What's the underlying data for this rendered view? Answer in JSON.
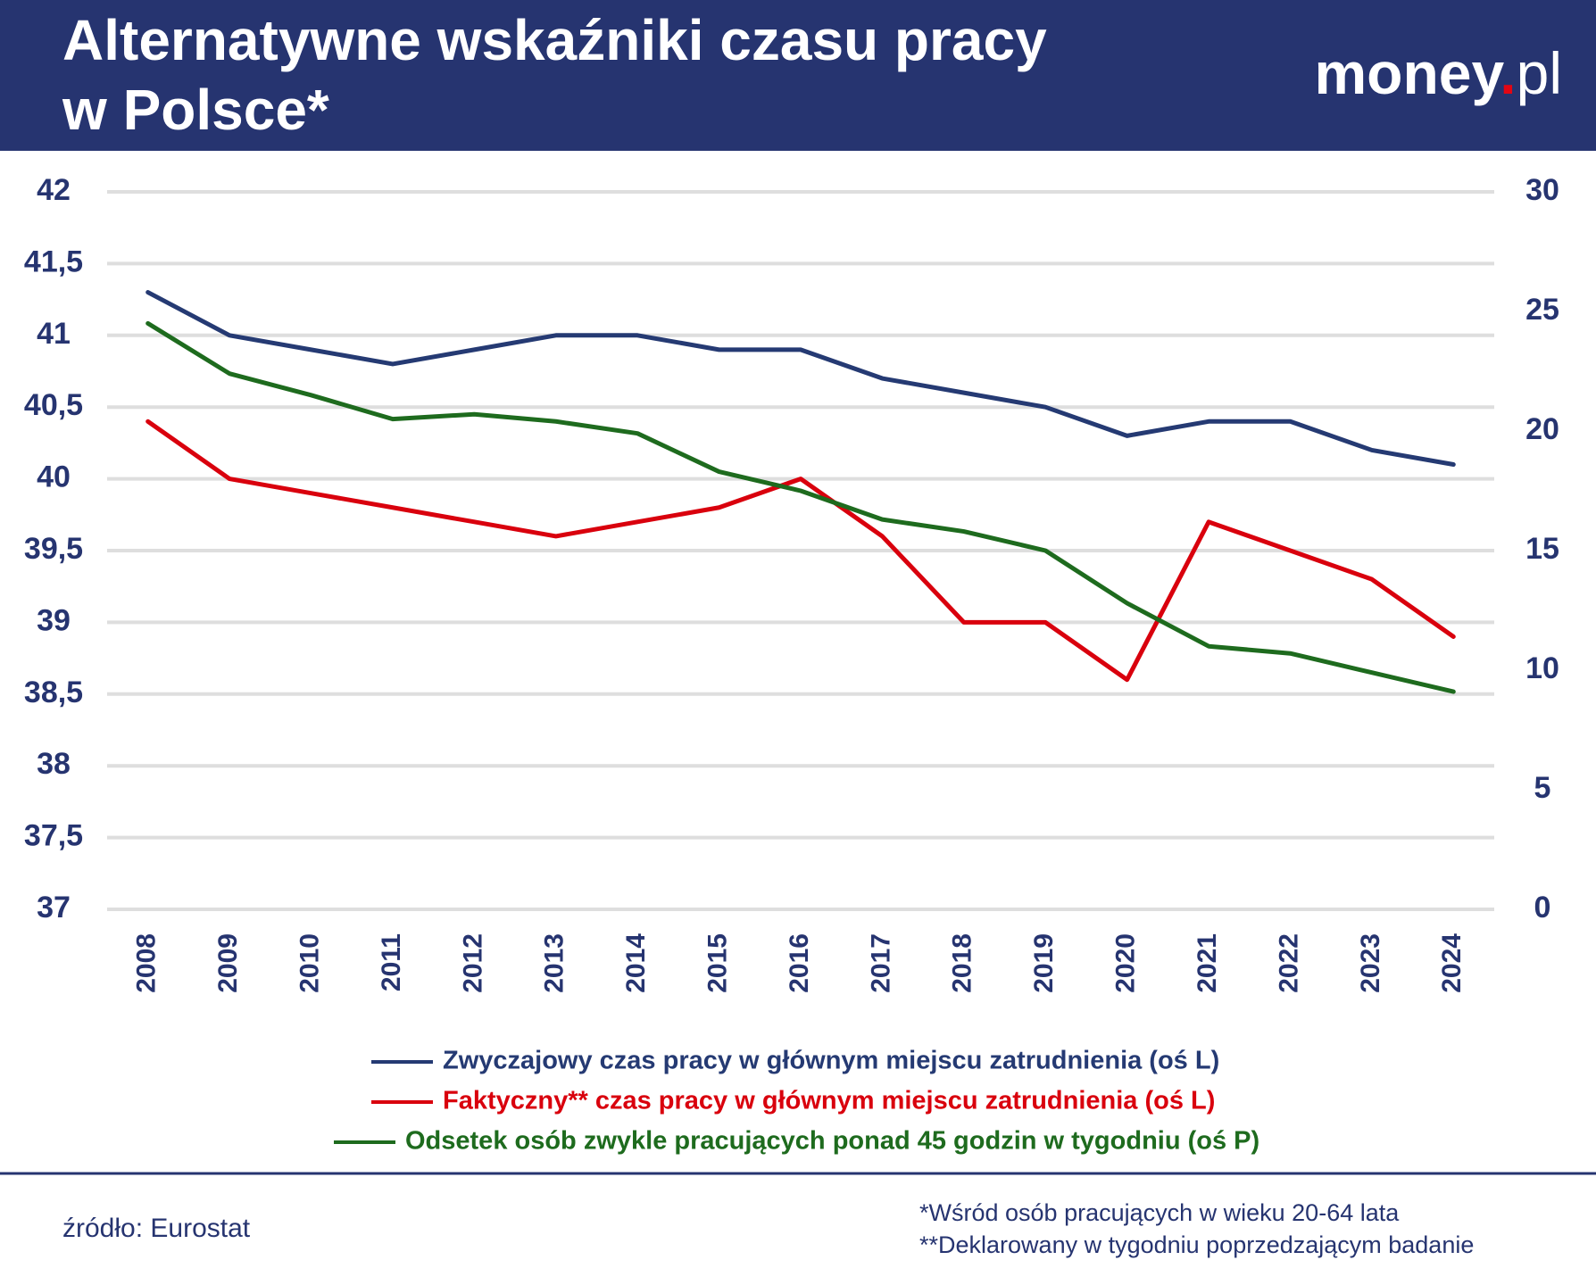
{
  "chart_data": {
    "type": "line",
    "title": [
      "Alternatywne wskaźniki czasu pracy",
      "w Polsce*"
    ],
    "logo": {
      "main": "money",
      "dot": ".",
      "suffix": "pl"
    },
    "categories": [
      "2008",
      "2009",
      "2010",
      "2011",
      "2012",
      "2013",
      "2014",
      "2015",
      "2016",
      "2017",
      "2018",
      "2019",
      "2020",
      "2021",
      "2022",
      "2023",
      "2024"
    ],
    "series": [
      {
        "name": "Zwyczajowy czas pracy w głównym miejscu zatrudnienia (oś L)",
        "color": "#253a73",
        "values": [
          41.3,
          41.0,
          40.9,
          40.8,
          40.9,
          41.0,
          41.0,
          40.9,
          40.9,
          40.7,
          40.6,
          40.5,
          40.3,
          40.4,
          40.4,
          40.2,
          40.1
        ]
      },
      {
        "name": "Faktyczny** czas pracy w głównym miejscu zatrudnienia (oś L)",
        "color": "#d9000d",
        "values": [
          40.4,
          40.0,
          39.9,
          39.8,
          39.7,
          39.6,
          39.7,
          39.8,
          40.0,
          39.6,
          39.0,
          39.0,
          38.6,
          39.7,
          39.5,
          39.3,
          38.9
        ]
      },
      {
        "name": "Odsetek osób zwykle pracujących ponad 45 godzin w tygodniu (oś P)",
        "color": "#1e6b1e",
        "axis": "y2",
        "values": [
          24.5,
          22.4,
          21.5,
          20.5,
          20.7,
          20.4,
          19.9,
          18.3,
          17.5,
          16.3,
          15.8,
          15.0,
          12.8,
          11.0,
          10.7,
          9.9,
          9.1
        ]
      }
    ],
    "ylim": [
      37,
      42
    ],
    "yticks": [
      37,
      {
        "value": 37.5,
        "label": "37,5"
      },
      38,
      {
        "value": 38.5,
        "label": "38,5"
      },
      39,
      {
        "value": 39.5,
        "label": "39,5"
      },
      40,
      {
        "value": 40.5,
        "label": "40,5"
      },
      41,
      {
        "value": 41.5,
        "label": "41,5"
      },
      42
    ],
    "y2lim": [
      0,
      30
    ],
    "y2ticks": [
      0,
      5,
      10,
      15,
      20,
      25,
      30
    ],
    "grid": true,
    "source": "źródło: Eurostat",
    "notes": [
      "*Wśród osób pracujących w wieku 20-64 lata",
      "**Deklarowany w tygodniu poprzedzającym badanie"
    ]
  }
}
